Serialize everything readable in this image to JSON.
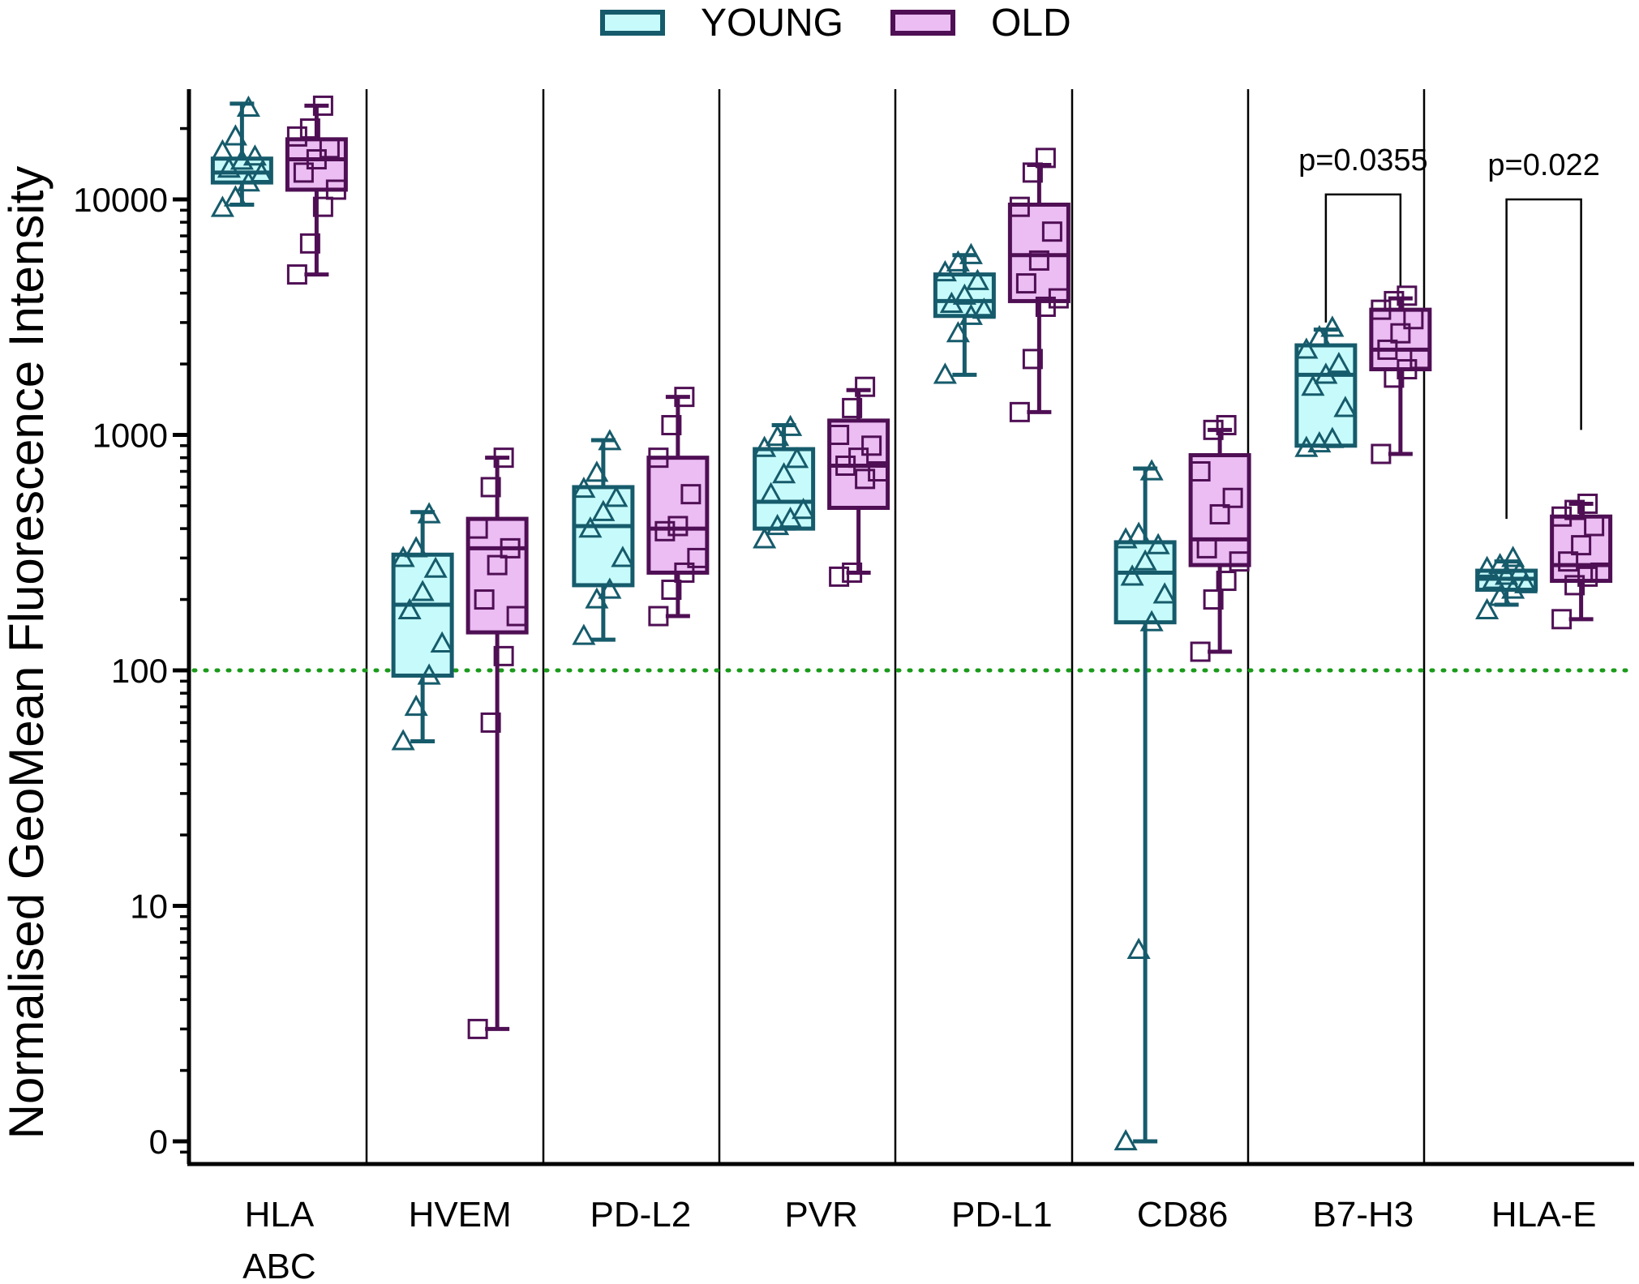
{
  "chart_data": {
    "type": "box",
    "ylabel": "Normalised  GeoMean Fluorescence Intensity",
    "yscale": "log",
    "ylim": [
      0.55,
      30000
    ],
    "yticks": [
      {
        "value": 1,
        "label": "0"
      },
      {
        "value": 10,
        "label": "10"
      },
      {
        "value": 100,
        "label": "100"
      },
      {
        "value": 1000,
        "label": "1000"
      },
      {
        "value": 10000,
        "label": "10000"
      }
    ],
    "reference_line": {
      "value": 100,
      "color": "#1a9a1a",
      "style": "dotted"
    },
    "categories": [
      {
        "id": "hla-abc",
        "label_lines": [
          "HLA",
          "ABC"
        ]
      },
      {
        "id": "hvem",
        "label_lines": [
          "HVEM"
        ]
      },
      {
        "id": "pd-l2",
        "label_lines": [
          "PD-L2"
        ]
      },
      {
        "id": "pvr",
        "label_lines": [
          "PVR"
        ]
      },
      {
        "id": "pd-l1",
        "label_lines": [
          "PD-L1"
        ]
      },
      {
        "id": "cd86",
        "label_lines": [
          "CD86"
        ]
      },
      {
        "id": "b7-h3",
        "label_lines": [
          "B7-H3"
        ]
      },
      {
        "id": "hla-e",
        "label_lines": [
          "HLA-E"
        ]
      }
    ],
    "series": [
      {
        "name": "YOUNG",
        "marker": "triangle",
        "stroke": "#165b6b",
        "fill": "#c7fbfb",
        "boxes": [
          {
            "min": 9500,
            "q1": 11800,
            "median": 13000,
            "q3": 14900,
            "max": 25500,
            "points": [
              9200,
              10200,
              11800,
              12900,
              13500,
              14600,
              15200,
              16000,
              18500,
              24500
            ]
          },
          {
            "min": 50,
            "q1": 95,
            "median": 190,
            "q3": 310,
            "max": 470,
            "points": [
              50,
              70,
              95,
              130,
              180,
              215,
              270,
              300,
              330,
              460
            ]
          },
          {
            "min": 135,
            "q1": 230,
            "median": 410,
            "q3": 600,
            "max": 950,
            "points": [
              140,
              200,
              220,
              300,
              400,
              470,
              540,
              590,
              690,
              940
            ]
          },
          {
            "min": 400,
            "q1": 400,
            "median": 520,
            "q3": 870,
            "max": 1100,
            "points": [
              360,
              410,
              440,
              480,
              560,
              680,
              790,
              880,
              980,
              1080
            ]
          },
          {
            "min": 1800,
            "q1": 3200,
            "median": 3700,
            "q3": 4800,
            "max": 5800,
            "points": [
              1800,
              2700,
              3200,
              3400,
              3600,
              3900,
              4500,
              4900,
              5400,
              5800
            ]
          },
          {
            "min": 1,
            "q1": 160,
            "median": 260,
            "q3": 350,
            "max": 720,
            "points": [
              1,
              6.5,
              160,
              210,
              250,
              290,
              340,
              360,
              380,
              700
            ]
          },
          {
            "min": 900,
            "q1": 900,
            "median": 1800,
            "q3": 2400,
            "max": 2800,
            "points": [
              880,
              920,
              960,
              1300,
              1600,
              1800,
              2000,
              2300,
              2600,
              2850
            ]
          },
          {
            "min": 190,
            "q1": 220,
            "median": 245,
            "q3": 265,
            "max": 290,
            "points": [
              180,
              205,
              220,
              232,
              242,
              252,
              262,
              272,
              280,
              300
            ]
          }
        ]
      },
      {
        "name": "OLD",
        "marker": "square",
        "stroke": "#4f0f54",
        "fill": "#ebbdf3",
        "boxes": [
          {
            "min": 4800,
            "q1": 11000,
            "median": 14800,
            "q3": 18000,
            "max": 25000,
            "points": [
              4800,
              6500,
              9300,
              11000,
              13000,
              14800,
              16500,
              18500,
              20000,
              25000
            ]
          },
          {
            "min": 3,
            "q1": 145,
            "median": 330,
            "q3": 440,
            "max": 800,
            "points": [
              3,
              60,
              115,
              170,
              200,
              280,
              330,
              400,
              600,
              800
            ]
          },
          {
            "min": 170,
            "q1": 260,
            "median": 400,
            "q3": 800,
            "max": 1450,
            "points": [
              170,
              220,
              260,
              300,
              390,
              410,
              560,
              800,
              1100,
              1450
            ]
          },
          {
            "min": 260,
            "q1": 490,
            "median": 740,
            "q3": 1150,
            "max": 1550,
            "points": [
              250,
              260,
              650,
              700,
              740,
              800,
              900,
              1000,
              1300,
              1600
            ]
          },
          {
            "min": 1250,
            "q1": 3700,
            "median": 5800,
            "q3": 9500,
            "max": 14000,
            "points": [
              1250,
              2100,
              3500,
              3800,
              4400,
              5500,
              7300,
              9300,
              13000,
              15000
            ]
          },
          {
            "min": 120,
            "q1": 280,
            "median": 360,
            "q3": 820,
            "max": 1050,
            "points": [
              120,
              200,
              240,
              290,
              330,
              460,
              540,
              700,
              1050,
              1100
            ]
          },
          {
            "min": 830,
            "q1": 1900,
            "median": 2300,
            "q3": 3400,
            "max": 3800,
            "points": [
              830,
              1750,
              1900,
              2100,
              2300,
              2700,
              3100,
              3400,
              3700,
              3900
            ]
          },
          {
            "min": 165,
            "q1": 240,
            "median": 280,
            "q3": 450,
            "max": 510,
            "points": [
              165,
              230,
              250,
              260,
              290,
              340,
              410,
              450,
              480,
              510
            ]
          }
        ]
      }
    ],
    "annotations": [
      {
        "category": "b7-h3",
        "text": "p=0.0355",
        "left_value": 3000,
        "right_value": 4300,
        "top_value": 10500
      },
      {
        "category": "hla-e",
        "text": "p=0.022",
        "left_value": 440,
        "right_value": 1050,
        "top_value": 10000
      }
    ],
    "legend": {
      "position": "top",
      "entries": [
        "YOUNG",
        "OLD"
      ]
    }
  }
}
